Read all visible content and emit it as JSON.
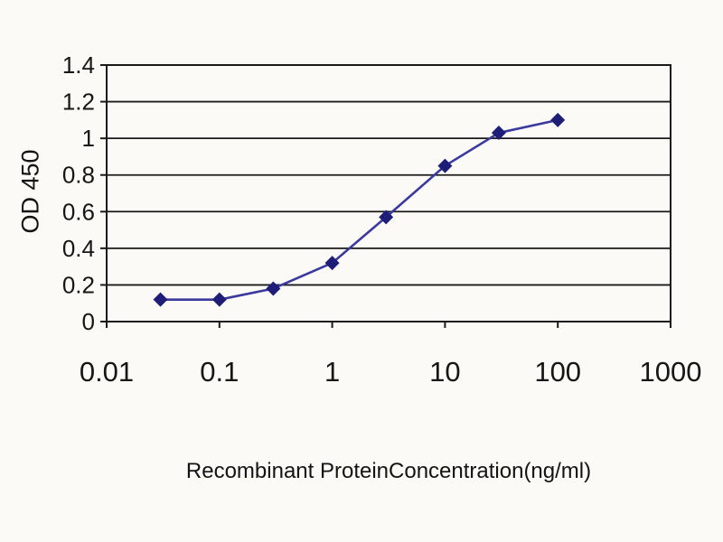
{
  "chart_data": {
    "type": "line",
    "title": "",
    "xlabel": "Recombinant ProteinConcentration(ng/ml)",
    "ylabel": "OD 450",
    "x_scale": "log",
    "xlim": [
      0.01,
      1000
    ],
    "x_ticks": [
      0.01,
      0.1,
      1,
      10,
      100,
      1000
    ],
    "x_tick_labels": [
      "0.01",
      "0.1",
      "1",
      "10",
      "100",
      "1000"
    ],
    "ylim": [
      0,
      1.4
    ],
    "y_ticks": [
      0,
      0.2,
      0.4,
      0.6,
      0.8,
      1,
      1.2,
      1.4
    ],
    "y_tick_labels": [
      "0",
      "0.2",
      "0.4",
      "0.6",
      "0.8",
      "1",
      "1.2",
      "1.4"
    ],
    "grid": "horizontal",
    "legend": "none",
    "series": [
      {
        "name": "OD 450",
        "marker": "diamond",
        "line_color": "#3a3a9e",
        "marker_color": "#1e1e78",
        "x": [
          0.03,
          0.1,
          0.3,
          1,
          3,
          10,
          30,
          100
        ],
        "y": [
          0.12,
          0.12,
          0.18,
          0.32,
          0.57,
          0.85,
          1.03,
          1.1
        ]
      }
    ]
  },
  "colors": {
    "grid": "#1a1a1a",
    "axis": "#1a1a1a",
    "text": "#161616",
    "background": "#fbfaf7"
  }
}
